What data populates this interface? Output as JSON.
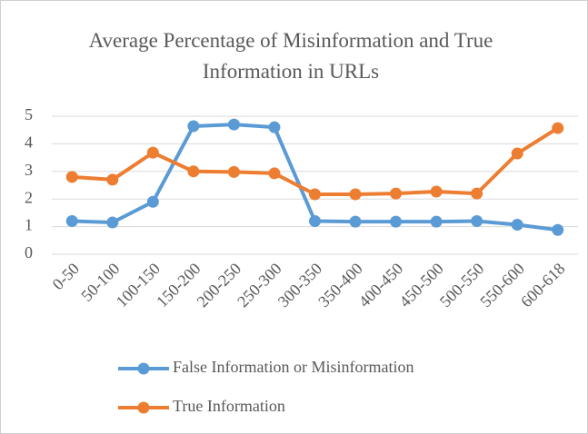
{
  "chart_data": {
    "type": "line",
    "title": "Average Percentage of Misinformation and True Information in URLs",
    "categories": [
      "0-50",
      "50-100",
      "100-150",
      "150-200",
      "200-250",
      "250-300",
      "300-350",
      "350-400",
      "400-450",
      "450-500",
      "500-550",
      "550-600",
      "600-618"
    ],
    "series": [
      {
        "name": "False Information or Misinformation",
        "color": "#5b9bd5",
        "values": [
          1.2,
          1.15,
          1.9,
          4.64,
          4.7,
          4.6,
          1.2,
          1.18,
          1.18,
          1.18,
          1.2,
          1.07,
          0.88
        ]
      },
      {
        "name": "True Information",
        "color": "#ed7d31",
        "values": [
          2.8,
          2.7,
          3.68,
          3.0,
          2.98,
          2.93,
          2.17,
          2.17,
          2.2,
          2.27,
          2.2,
          3.65,
          4.57
        ]
      }
    ],
    "ylim": [
      0,
      5
    ],
    "yticks": [
      0,
      1,
      2,
      3,
      4,
      5
    ],
    "grid": true,
    "legend": "bottom"
  }
}
